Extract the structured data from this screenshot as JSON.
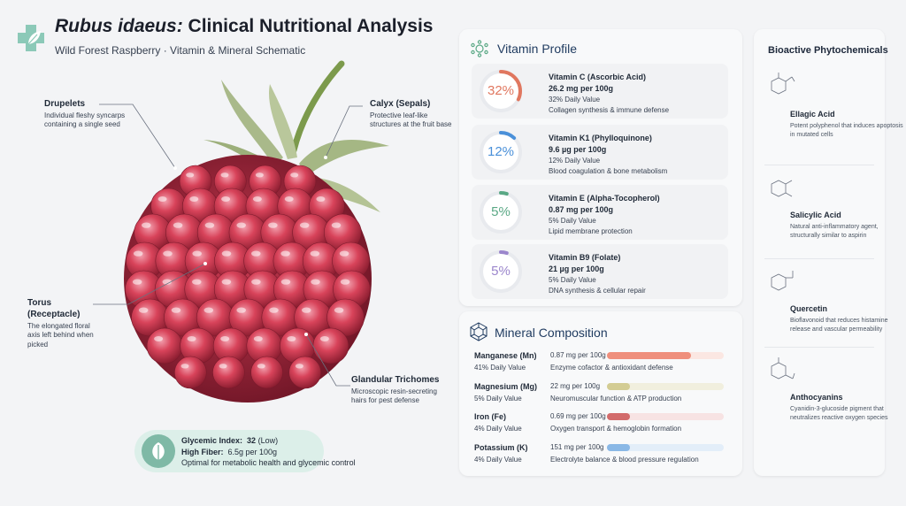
{
  "header": {
    "title_italic": "Rubus idaeus:",
    "title_rest": " Clinical Nutritional Analysis",
    "subtitle": "Wild Forest Raspberry · Vitamin & Mineral Schematic"
  },
  "anatomy": {
    "drupelets": {
      "title": "Drupelets",
      "desc": "Individual fleshy syncarps containing a single seed"
    },
    "calyx": {
      "title": "Calyx (Sepals)",
      "desc": "Protective leaf-like structures at the fruit base"
    },
    "torus": {
      "title": "Torus (Receptacle)",
      "desc": "The elongated floral axis left behind when picked"
    },
    "trichomes": {
      "title": "Glandular Trichomes",
      "desc": "Microscopic resin-secreting hairs for pest defense"
    }
  },
  "glycemic": {
    "gi_label": "Glycemic Index:",
    "gi_value": "32",
    "gi_note": "(Low)",
    "fiber_label": "High Fiber:",
    "fiber_value": "6.5g per 100g",
    "note": "Optimal for metabolic health and glycemic control"
  },
  "vitamins": {
    "title": "Vitamin Profile",
    "items": [
      {
        "pct_text": "32%",
        "fraction": 0.32,
        "color": "#e0775f",
        "name": "Vitamin C (Ascorbic Acid)",
        "amount": "26.2 mg per 100g",
        "dv": "32% Daily Value",
        "role": "Collagen synthesis & immune defense"
      },
      {
        "pct_text": "12%",
        "fraction": 0.12,
        "color": "#4a90d9",
        "name": "Vitamin K1 (Phylloquinone)",
        "amount": "9.6 µg per 100g",
        "dv": "12% Daily Value",
        "role": "Blood coagulation & bone metabolism"
      },
      {
        "pct_text": "5%",
        "fraction": 0.05,
        "color": "#5aa885",
        "name": "Vitamin E (Alpha-Tocopherol)",
        "amount": "0.87 mg per 100g",
        "dv": "5% Daily Value",
        "role": "Lipid membrane protection"
      },
      {
        "pct_text": "5%",
        "fraction": 0.05,
        "color": "#9b86cc",
        "name": "Vitamin B9 (Folate)",
        "amount": "21 µg per 100g",
        "dv": "5% Daily Value",
        "role": "DNA synthesis & cellular repair"
      }
    ]
  },
  "minerals": {
    "title": "Mineral Composition",
    "items": [
      {
        "name": "Manganese (Mn)",
        "dv": "41% Daily Value",
        "amount": "0.87 mg per 100g",
        "role": "Enzyme cofactor & antioxidant defense",
        "fraction": 0.72,
        "color": "#ef8f7c",
        "track": "#fbe7e2"
      },
      {
        "name": "Magnesium (Mg)",
        "dv": "5% Daily Value",
        "amount": "22 mg per 100g",
        "role": "Neuromuscular function & ATP production",
        "fraction": 0.2,
        "color": "#d3cc93",
        "track": "#f1efde"
      },
      {
        "name": "Iron (Fe)",
        "dv": "4% Daily Value",
        "amount": "0.69 mg per 100g",
        "role": "Oxygen transport & hemoglobin formation",
        "fraction": 0.2,
        "color": "#d26b6b",
        "track": "#f7e3e3"
      },
      {
        "name": "Potassium (K)",
        "dv": "4% Daily Value",
        "amount": "151 mg per 100g",
        "role": "Electrolyte balance & blood pressure regulation",
        "fraction": 0.2,
        "color": "#8ab8e6",
        "track": "#e3eef9"
      }
    ]
  },
  "phytochemicals": {
    "title": "Bioactive Phytochemicals",
    "items": [
      {
        "name": "Ellagic Acid",
        "desc": "Potent polyphenol that induces apoptosis in mutated cells"
      },
      {
        "name": "Salicylic Acid",
        "desc": "Natural anti-inflammatory agent, structurally similar to aspirin"
      },
      {
        "name": "Quercetin",
        "desc": "Bioflavonoid that reduces histamine release and vascular permeability"
      },
      {
        "name": "Anthocyanins",
        "desc": "Cyanidin-3-glucoside pigment that neutralizes reactive oxygen species"
      }
    ]
  }
}
